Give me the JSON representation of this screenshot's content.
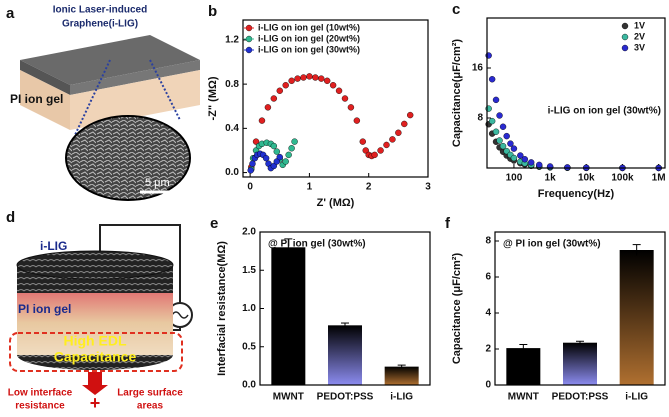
{
  "panels": {
    "a": {
      "label": "a",
      "title": [
        "Ionic Laser-induced",
        "Graphene(i-LIG)"
      ],
      "layer": "PI ion gel",
      "scale": "5 μm"
    },
    "d": {
      "label": "d",
      "top": "i-LIG",
      "middle": "PI ion gel",
      "highlight": [
        "High EDL",
        "Capacitance"
      ],
      "left_note": [
        "Low interface",
        "resistance"
      ],
      "plus": "+",
      "right_note": [
        "Large surface",
        "areas"
      ]
    }
  },
  "chart_data": [
    {
      "type": "scatter",
      "label": "b",
      "xlabel": "Z' (MΩ)",
      "ylabel": "-Z\" (MΩ)",
      "legend": "upper-left",
      "xlim": [
        -0.12,
        3.0
      ],
      "ylim": [
        -0.04,
        1.38
      ],
      "xticks": [
        0,
        1,
        2,
        3
      ],
      "yticks": [
        {
          "value": 0,
          "label": "0.0"
        },
        0.4,
        0.8,
        1.2
      ],
      "series": [
        {
          "name": "i-LIG on  ion gel (10wt%)",
          "color": "#e02020",
          "x": [
            0.02,
            0.06,
            0.1,
            0.2,
            0.3,
            0.4,
            0.5,
            0.6,
            0.7,
            0.8,
            0.9,
            1.0,
            1.1,
            1.2,
            1.3,
            1.4,
            1.5,
            1.6,
            1.7,
            1.8,
            1.9,
            1.95,
            2.0,
            2.05,
            2.1,
            2.2,
            2.3,
            2.4,
            2.5,
            2.6,
            2.7
          ],
          "values": [
            0.05,
            0.13,
            0.28,
            0.47,
            0.59,
            0.67,
            0.74,
            0.79,
            0.83,
            0.85,
            0.86,
            0.87,
            0.86,
            0.85,
            0.83,
            0.79,
            0.74,
            0.67,
            0.59,
            0.47,
            0.28,
            0.2,
            0.16,
            0.15,
            0.16,
            0.2,
            0.25,
            0.3,
            0.36,
            0.44,
            0.52
          ]
        },
        {
          "name": "i-LIG on  ion gel (20wt%)",
          "color": "#30b890",
          "x": [
            0.02,
            0.05,
            0.1,
            0.15,
            0.2,
            0.28,
            0.35,
            0.4,
            0.45,
            0.5,
            0.55,
            0.6,
            0.65,
            0.7,
            0.75
          ],
          "values": [
            0.03,
            0.13,
            0.2,
            0.24,
            0.26,
            0.27,
            0.26,
            0.24,
            0.19,
            0.12,
            0.07,
            0.1,
            0.16,
            0.22,
            0.28
          ]
        },
        {
          "name": "i-LIG on  ion gel (30wt%)",
          "color": "#2030d0",
          "x": [
            0.01,
            0.04,
            0.08,
            0.12,
            0.17,
            0.22,
            0.27,
            0.31,
            0.35,
            0.4,
            0.45,
            0.5
          ],
          "values": [
            0.02,
            0.08,
            0.13,
            0.16,
            0.17,
            0.16,
            0.13,
            0.08,
            0.04,
            0.06,
            0.1,
            0.14
          ]
        }
      ]
    },
    {
      "type": "scatter",
      "label": "c",
      "xlabel": "Frequency(Hz)",
      "ylabel": "Capacitance(μF/cm²)",
      "legend": "upper-right",
      "xlog": true,
      "annotation": "i-LIG on ion gel (30wt%)",
      "xlim": [
        18,
        1500000
      ],
      "ylim": [
        0,
        24
      ],
      "xticks": [
        100,
        {
          "value": 1000,
          "label": "1k"
        },
        {
          "value": 10000,
          "label": "10k"
        },
        {
          "value": 100000,
          "label": "100k"
        },
        {
          "value": 1000000,
          "label": "1M"
        }
      ],
      "yticks": [
        8,
        16
      ],
      "x": [
        20,
        25,
        32,
        40,
        50,
        63,
        80,
        100,
        150,
        200,
        300,
        500,
        1000,
        3000,
        10000,
        100000,
        1000000
      ],
      "series": [
        {
          "name": "1V",
          "color": "#333333",
          "values": [
            7,
            5.5,
            4.2,
            3.3,
            2.6,
            2.0,
            1.5,
            1.2,
            0.77,
            0.55,
            0.35,
            0.2,
            0.1,
            0.04,
            0.02,
            0.01,
            0.01
          ]
        },
        {
          "name": "2V",
          "color": "#3bb8a0",
          "values": [
            9.5,
            7.5,
            5.8,
            4.4,
            3.5,
            2.7,
            2.1,
            1.6,
            1.0,
            0.75,
            0.48,
            0.27,
            0.13,
            0.05,
            0.03,
            0.01,
            0.01
          ]
        },
        {
          "name": "3V",
          "color": "#2a2ad0",
          "values": [
            18,
            14.2,
            10.9,
            8.4,
            6.6,
            5.1,
            3.9,
            3.1,
            2.0,
            1.4,
            0.9,
            0.5,
            0.25,
            0.1,
            0.05,
            0.02,
            0.01
          ]
        }
      ]
    },
    {
      "type": "bar",
      "label": "e",
      "ylabel": "Interfacial resistance(MΩ)",
      "annotation": "@ PI ion gel (30wt%)",
      "categories": [
        "MWNT",
        "PEDOT:PSS",
        "i-LIG"
      ],
      "values": [
        1.8,
        0.78,
        0.24
      ],
      "errors": [
        0.11,
        0.03,
        0.02
      ],
      "colors": [
        "#000000",
        "#8c8cf0",
        "#b07030"
      ],
      "ylim": [
        0,
        2.0
      ],
      "yticks": [
        {
          "value": 0,
          "label": "0.0"
        },
        0.5,
        {
          "value": 1,
          "label": "1.0"
        },
        1.5,
        {
          "value": 2,
          "label": "2.0"
        }
      ]
    },
    {
      "type": "bar",
      "label": "f",
      "ylabel": "Capacitance (μF/cm²)",
      "annotation": "@ PI ion gel (30wt%)",
      "categories": [
        "MWNT",
        "PEDOT:PSS",
        "i-LIG"
      ],
      "values": [
        2.05,
        2.35,
        7.5
      ],
      "errors": [
        0.2,
        0.08,
        0.3
      ],
      "colors": [
        "#000000",
        "#8c8cf0",
        "#b07030"
      ],
      "ylim": [
        0,
        8.5
      ],
      "yticks": [
        0,
        2,
        4,
        6,
        8
      ]
    }
  ]
}
